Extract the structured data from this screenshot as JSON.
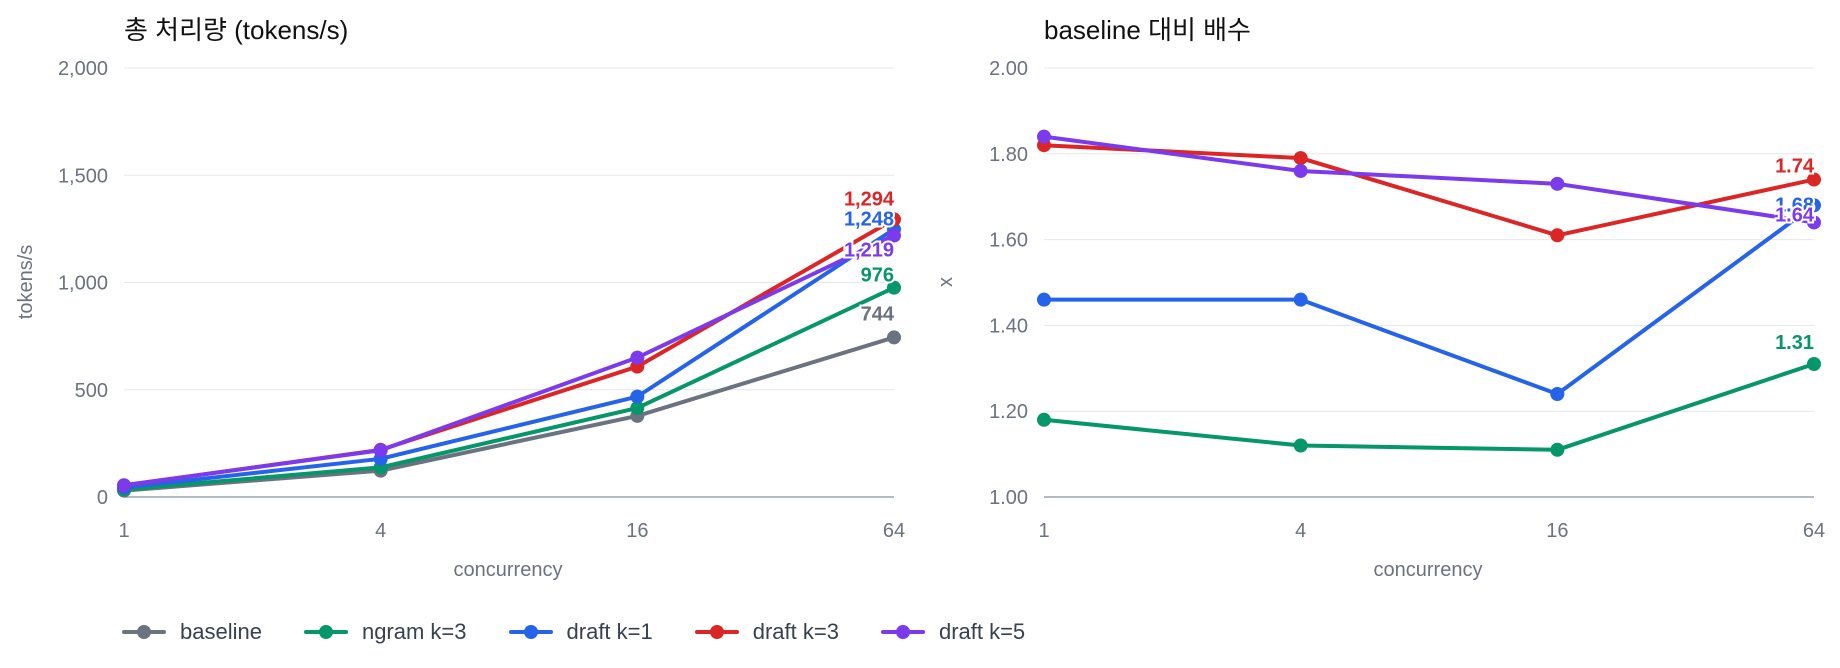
{
  "colors": {
    "baseline": "#6b7280",
    "ngram": "#059669",
    "draft1": "#2563eb",
    "draft3": "#dc2626",
    "draft5": "#7c3aed",
    "grid": "#e5e7eb",
    "text": "#111111",
    "muted": "#6b7280"
  },
  "legend": [
    {
      "name": "baseline",
      "color": "#6b7280"
    },
    {
      "name": "ngram k=3",
      "color": "#059669"
    },
    {
      "name": "draft k=1",
      "color": "#2563eb"
    },
    {
      "name": "draft k=3",
      "color": "#dc2626"
    },
    {
      "name": "draft k=5",
      "color": "#7c3aed"
    }
  ],
  "chart_data": [
    {
      "type": "line",
      "title": "총 처리량 (tokens/s)",
      "xlabel": "concurrency",
      "ylabel": "tokens/s",
      "categories": [
        "1",
        "4",
        "16",
        "64"
      ],
      "ylim": [
        0,
        2000
      ],
      "yticks": [
        "0",
        "500",
        "1,000",
        "1,500",
        "2,000"
      ],
      "grid": true,
      "legend_position": "bottom",
      "series": [
        {
          "name": "baseline",
          "color": "#6b7280",
          "values": [
            30,
            123,
            378,
            744
          ],
          "end_label": "744"
        },
        {
          "name": "ngram k=3",
          "color": "#059669",
          "values": [
            35,
            138,
            415,
            976
          ],
          "end_label": "976"
        },
        {
          "name": "draft k=1",
          "color": "#2563eb",
          "values": [
            44,
            178,
            468,
            1248
          ],
          "end_label": "1,248"
        },
        {
          "name": "draft k=3",
          "color": "#dc2626",
          "values": [
            54,
            220,
            608,
            1294
          ],
          "end_label": "1,294"
        },
        {
          "name": "draft k=5",
          "color": "#7c3aed",
          "values": [
            55,
            218,
            650,
            1219
          ],
          "end_label": "1,219"
        }
      ]
    },
    {
      "type": "line",
      "title": "baseline 대비 배수",
      "xlabel": "concurrency",
      "ylabel": "x",
      "categories": [
        "1",
        "4",
        "16",
        "64"
      ],
      "ylim": [
        1.0,
        2.0
      ],
      "yticks": [
        "1.00",
        "1.20",
        "1.40",
        "1.60",
        "1.80",
        "2.00"
      ],
      "grid": true,
      "legend_position": "bottom",
      "series": [
        {
          "name": "ngram k=3",
          "color": "#059669",
          "values": [
            1.18,
            1.12,
            1.11,
            1.31
          ],
          "end_label": "1.31"
        },
        {
          "name": "draft k=1",
          "color": "#2563eb",
          "values": [
            1.46,
            1.46,
            1.24,
            1.68
          ],
          "end_label": "1.68"
        },
        {
          "name": "draft k=3",
          "color": "#dc2626",
          "values": [
            1.82,
            1.79,
            1.61,
            1.74
          ],
          "end_label": "1.74"
        },
        {
          "name": "draft k=5",
          "color": "#7c3aed",
          "values": [
            1.84,
            1.76,
            1.73,
            1.64
          ],
          "end_label": "1.64"
        }
      ]
    }
  ]
}
